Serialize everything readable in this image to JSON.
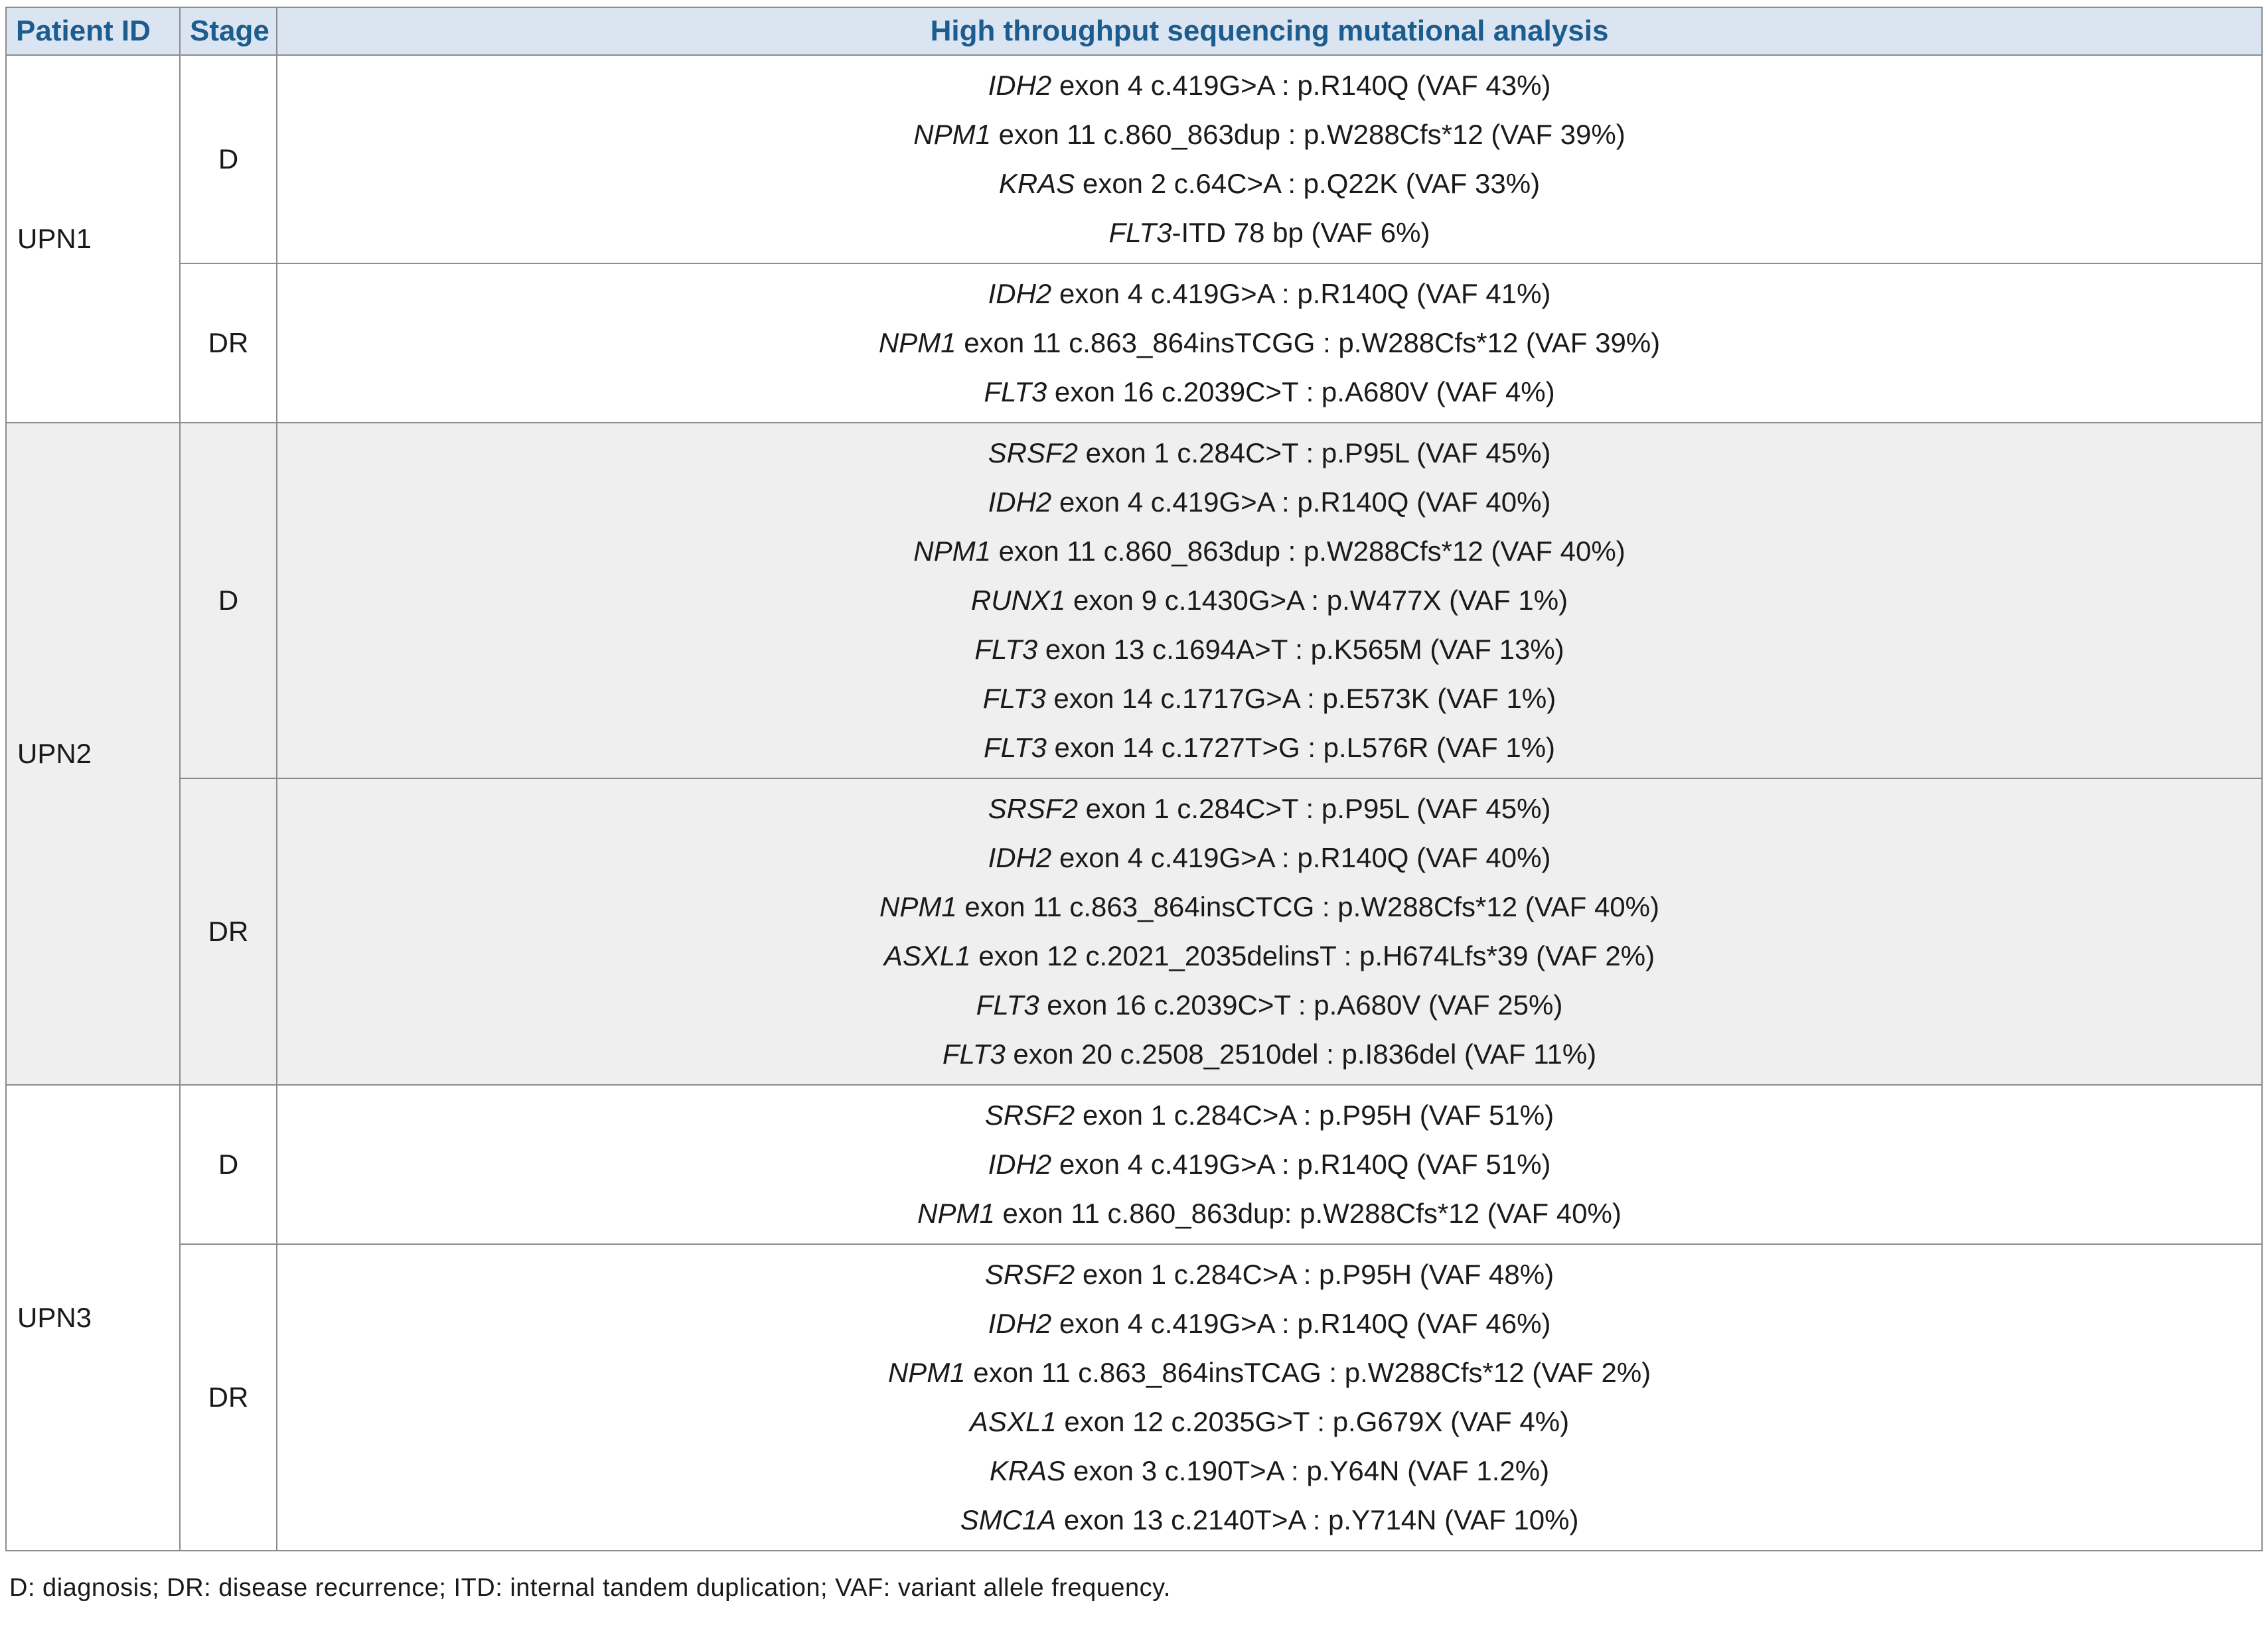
{
  "colors": {
    "header_bg": "#dbe5f1",
    "header_text": "#1d5c8e",
    "shaded_row": "#efefef",
    "border": "#8c8c8c",
    "body_text": "#1a1a1a"
  },
  "table": {
    "headers": {
      "patient_id": "Patient ID",
      "stage": "Stage",
      "analysis": "High throughput sequencing mutational analysis"
    },
    "groups": [
      {
        "patient": "UPN1",
        "shaded": false,
        "stages": [
          {
            "stage": "D",
            "mutations": [
              {
                "gene": "IDH2",
                "rest": " exon 4 c.419G>A : p.R140Q (VAF 43%)"
              },
              {
                "gene": "NPM1",
                "rest": " exon 11 c.860_863dup : p.W288Cfs*12 (VAF 39%)"
              },
              {
                "gene": "KRAS",
                "rest": " exon 2 c.64C>A : p.Q22K (VAF 33%)"
              },
              {
                "gene": "FLT3",
                "rest": "-ITD 78 bp (VAF 6%)"
              }
            ]
          },
          {
            "stage": "DR",
            "mutations": [
              {
                "gene": "IDH2",
                "rest": " exon 4 c.419G>A : p.R140Q (VAF 41%)"
              },
              {
                "gene": "NPM1",
                "rest": " exon 11 c.863_864insTCGG : p.W288Cfs*12 (VAF 39%)"
              },
              {
                "gene": "FLT3",
                "rest": " exon 16 c.2039C>T : p.A680V (VAF 4%)"
              }
            ]
          }
        ]
      },
      {
        "patient": "UPN2",
        "shaded": true,
        "stages": [
          {
            "stage": "D",
            "mutations": [
              {
                "gene": "SRSF2",
                "rest": " exon 1 c.284C>T : p.P95L (VAF 45%)"
              },
              {
                "gene": "IDH2",
                "rest": " exon 4 c.419G>A : p.R140Q (VAF 40%)"
              },
              {
                "gene": "NPM1",
                "rest": " exon 11 c.860_863dup : p.W288Cfs*12 (VAF 40%)"
              },
              {
                "gene": "RUNX1",
                "rest": " exon 9 c.1430G>A : p.W477X (VAF 1%)"
              },
              {
                "gene": "FLT3",
                "rest": " exon 13 c.1694A>T : p.K565M (VAF 13%)"
              },
              {
                "gene": "FLT3",
                "rest": " exon 14 c.1717G>A : p.E573K (VAF 1%)"
              },
              {
                "gene": "FLT3",
                "rest": " exon 14 c.1727T>G : p.L576R (VAF 1%)"
              }
            ]
          },
          {
            "stage": "DR",
            "mutations": [
              {
                "gene": "SRSF2",
                "rest": " exon 1 c.284C>T : p.P95L (VAF 45%)"
              },
              {
                "gene": "IDH2",
                "rest": " exon 4 c.419G>A : p.R140Q (VAF 40%)"
              },
              {
                "gene": "NPM1",
                "rest": " exon 11 c.863_864insCTCG : p.W288Cfs*12 (VAF 40%)"
              },
              {
                "gene": "ASXL1",
                "rest": " exon 12 c.2021_2035delinsT : p.H674Lfs*39 (VAF 2%)"
              },
              {
                "gene": "FLT3",
                "rest": " exon 16 c.2039C>T : p.A680V (VAF 25%)"
              },
              {
                "gene": "FLT3",
                "rest": " exon 20 c.2508_2510del : p.I836del (VAF 11%)"
              }
            ]
          }
        ]
      },
      {
        "patient": "UPN3",
        "shaded": false,
        "stages": [
          {
            "stage": "D",
            "mutations": [
              {
                "gene": "SRSF2",
                "rest": " exon 1 c.284C>A : p.P95H (VAF 51%)"
              },
              {
                "gene": "IDH2",
                "rest": " exon 4 c.419G>A : p.R140Q (VAF 51%)"
              },
              {
                "gene": "NPM1",
                "rest": " exon 11 c.860_863dup: p.W288Cfs*12 (VAF 40%)"
              }
            ]
          },
          {
            "stage": "DR",
            "mutations": [
              {
                "gene": "SRSF2",
                "rest": " exon 1 c.284C>A : p.P95H (VAF 48%)"
              },
              {
                "gene": "IDH2",
                "rest": " exon 4 c.419G>A : p.R140Q (VAF 46%)"
              },
              {
                "gene": "NPM1",
                "rest": " exon 11 c.863_864insTCAG : p.W288Cfs*12 (VAF 2%)"
              },
              {
                "gene": "ASXL1",
                "rest": " exon 12 c.2035G>T : p.G679X (VAF 4%)"
              },
              {
                "gene": "KRAS",
                "rest": " exon 3 c.190T>A : p.Y64N (VAF 1.2%)"
              },
              {
                "gene": "SMC1A",
                "rest": " exon 13 c.2140T>A : p.Y714N (VAF 10%)"
              }
            ]
          }
        ]
      }
    ]
  },
  "footnote": "D: diagnosis; DR: disease recurrence; ITD: internal tandem duplication; VAF: variant allele frequency."
}
